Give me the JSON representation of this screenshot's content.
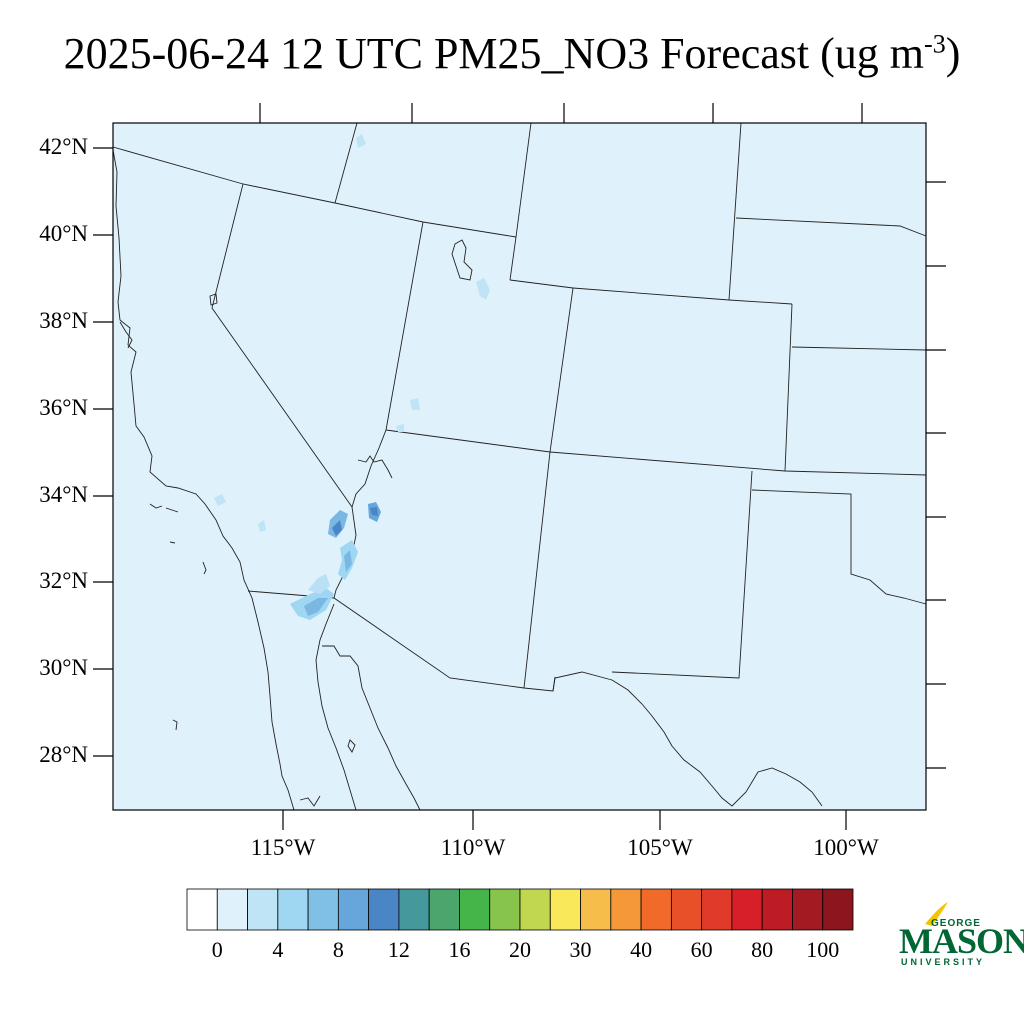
{
  "title": {
    "main": "2025-06-24 12 UTC PM25_NO3 Forecast (ug m",
    "exponent": "-3",
    "close": ")"
  },
  "map": {
    "fill_color": "#dff1fb",
    "lat_labels": [
      "42°N",
      "40°N",
      "38°N",
      "36°N",
      "34°N",
      "32°N",
      "30°N",
      "28°N"
    ],
    "lon_labels": [
      "115°W",
      "110°W",
      "105°W",
      "100°W"
    ],
    "hotspot_colors": [
      "#9fd6f2",
      "#7ab8e3",
      "#4a86c5"
    ]
  },
  "colorbar": {
    "colors": [
      "#ffffff",
      "#dff1fb",
      "#bfe4f6",
      "#9fd6f2",
      "#80bfe6",
      "#66a6da",
      "#4a86c5",
      "#45999d",
      "#4aa66b",
      "#45b54a",
      "#86c44b",
      "#c1d74f",
      "#f9e95a",
      "#f7bd4a",
      "#f5983a",
      "#f26a2a",
      "#e8502a",
      "#e03a2a",
      "#d71f29",
      "#bd1c25",
      "#a31a22",
      "#8c161d"
    ],
    "labels": [
      "0",
      "4",
      "8",
      "12",
      "16",
      "20",
      "30",
      "40",
      "60",
      "80",
      "100"
    ]
  },
  "logo": {
    "top": "GEORGE",
    "main": "MASON",
    "bottom": "UNIVERSITY",
    "color": "#006633",
    "accent": "#f2c500"
  }
}
